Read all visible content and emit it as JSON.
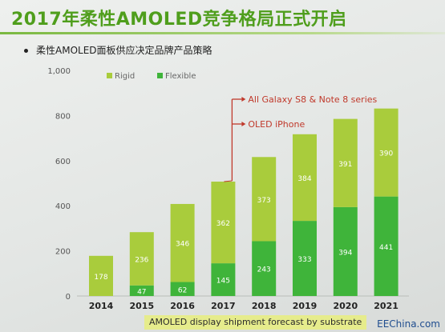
{
  "slide": {
    "title": "2017年柔性AMOLED竞争格局正式开启",
    "bullet": "柔性AMOLED面板供应决定品牌产品策略",
    "source": "EEChina.com"
  },
  "colors": {
    "rigid": "#a9cc3c",
    "flexible": "#3fb43a",
    "annotation": "#c0392b",
    "label_text": "#ffffff"
  },
  "chart_data": {
    "type": "bar",
    "stacked": true,
    "categories": [
      "2014",
      "2015",
      "2016",
      "2017",
      "2018",
      "2019",
      "2020",
      "2021"
    ],
    "series": [
      {
        "name": "Flexible",
        "values": [
          null,
          47,
          62,
          145,
          243,
          333,
          394,
          441
        ]
      },
      {
        "name": "Rigid",
        "values": [
          178,
          236,
          346,
          362,
          373,
          384,
          391,
          390
        ]
      }
    ],
    "ylim": [
      0,
      1000
    ],
    "yticks": [
      "0",
      "200",
      "400",
      "600",
      "800",
      "1,000"
    ],
    "legend": {
      "placement": "top-left"
    },
    "xlabel": "AMOLED display shipment forecast by substrate",
    "annotations": [
      {
        "text": "All Galaxy S8 & Note 8 series",
        "category": "2017"
      },
      {
        "text": "OLED iPhone",
        "category": "2017"
      }
    ]
  }
}
